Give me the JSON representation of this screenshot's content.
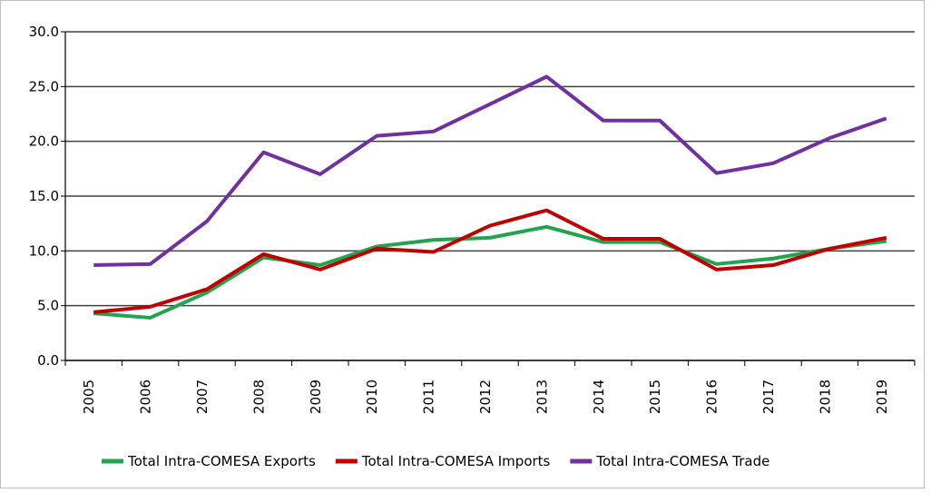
{
  "chart_data": {
    "type": "line",
    "categories": [
      "2005",
      "2006",
      "2007",
      "2008",
      "2009",
      "2010",
      "2011",
      "2012",
      "2013",
      "2014",
      "2015",
      "2016",
      "2017",
      "2018",
      "2019"
    ],
    "series": [
      {
        "name": "Total Intra-COMESA Exports",
        "color": "#21a34f",
        "values": [
          4.3,
          3.9,
          6.2,
          9.4,
          8.7,
          10.4,
          11.0,
          11.2,
          12.2,
          10.8,
          10.8,
          8.8,
          9.3,
          10.2,
          10.9
        ]
      },
      {
        "name": "Total Intra-COMESA Imports",
        "color": "#c00000",
        "values": [
          4.4,
          4.9,
          6.5,
          9.7,
          8.3,
          10.2,
          9.9,
          12.3,
          13.7,
          11.1,
          11.1,
          8.3,
          8.7,
          10.2,
          11.2
        ]
      },
      {
        "name": "Total Intra-COMESA Trade",
        "color": "#7030a0",
        "values": [
          8.7,
          8.8,
          12.7,
          19.0,
          17.0,
          20.5,
          20.9,
          23.4,
          25.9,
          21.9,
          21.9,
          17.1,
          18.0,
          20.3,
          22.1
        ]
      }
    ],
    "ylim": [
      0,
      30
    ],
    "yticks": [
      {
        "value": 0,
        "label": "0.0"
      },
      {
        "value": 5,
        "label": "5.0"
      },
      {
        "value": 10,
        "label": "10.0"
      },
      {
        "value": 15,
        "label": "15.0"
      },
      {
        "value": 20,
        "label": "20.0"
      },
      {
        "value": 25,
        "label": "25.0"
      },
      {
        "value": 30,
        "label": "30.0"
      }
    ],
    "grid": true,
    "legend": "bottom"
  }
}
